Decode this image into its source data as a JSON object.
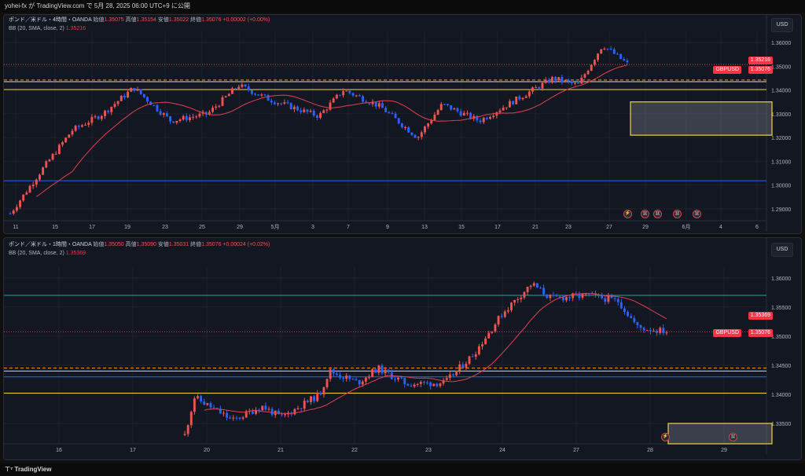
{
  "header": {
    "publish_text": "yohei-fx が TradingView.com で 5月 28, 2025 06:00 UTC+9 に公開"
  },
  "colors": {
    "up": "#ef5350",
    "down": "#2962ff",
    "bg": "#131722",
    "orange_dash": "#ff9800",
    "yellow": "#f0d43a",
    "blue_line": "#2962ff",
    "teal_line": "#26a69a",
    "bb": "#e04050"
  },
  "top_chart": {
    "legend_symbol": "ポンド／米ドル・4時間・OANDA",
    "open_label": "始値",
    "open": "1.35075",
    "high_label": "高値",
    "high": "1.35154",
    "low_label": "安値",
    "low": "1.35022",
    "close_label": "終値",
    "close": "1.35076",
    "change": "+0.00002 (+0.00%)",
    "bb_label": "BB (20, SMA, close, 2)",
    "bb_value": "1.35216",
    "currency": "USD",
    "price_ticks": [
      "1.36000",
      "1.35000",
      "1.34000",
      "1.33000",
      "1.32000",
      "1.31000",
      "1.30000",
      "1.29000"
    ],
    "tag_bb": "1.35216",
    "tag_symbol": "GBPUSD",
    "tag_price": "1.35076",
    "time_ticks": [
      "11",
      "15",
      "17",
      "19",
      "23",
      "25",
      "29",
      "5月",
      "3",
      "7",
      "9",
      "13",
      "15",
      "17",
      "21",
      "23",
      "27",
      "29",
      "6月",
      "4",
      "6"
    ]
  },
  "bottom_chart": {
    "legend_symbol": "ポンド／米ドル・1時間・OANDA",
    "open_label": "始値",
    "open": "1.35050",
    "high_label": "高値",
    "high": "1.35090",
    "low_label": "安値",
    "low": "1.35031",
    "close_label": "終値",
    "close": "1.35076",
    "change": "+0.00024 (+0.02%)",
    "bb_label": "BB (20, SMA, close, 2)",
    "bb_value": "1.35369",
    "currency": "USD",
    "price_ticks": [
      "1.36000",
      "1.35500",
      "1.35000",
      "1.34500",
      "1.34000",
      "1.33500"
    ],
    "tag_bb": "1.35369",
    "tag_symbol": "GBPUSD",
    "tag_price": "1.35076",
    "time_ticks": [
      "16",
      "17",
      "20",
      "21",
      "22",
      "23",
      "24",
      "27",
      "28",
      "29"
    ]
  },
  "footer": {
    "brand": "TradingView"
  }
}
